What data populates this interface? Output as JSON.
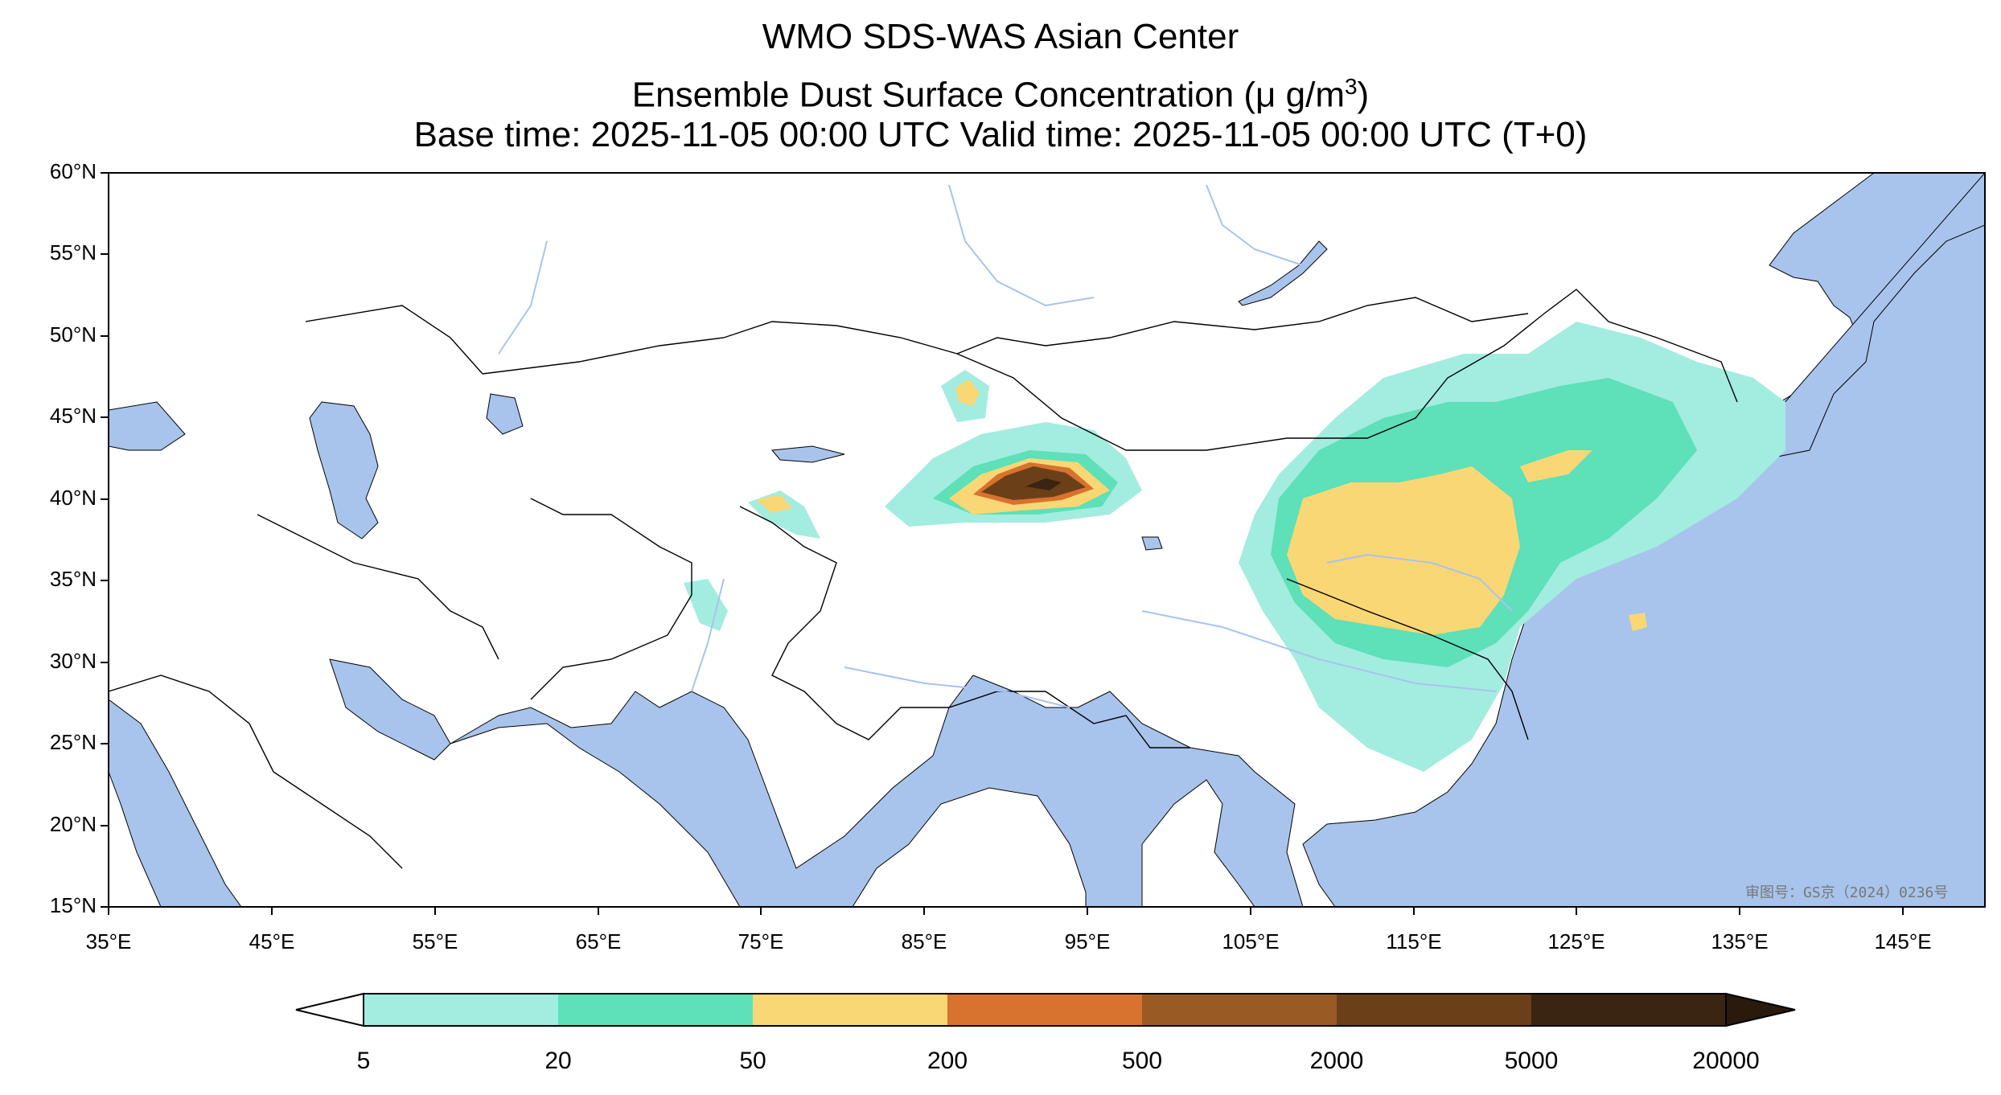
{
  "title": {
    "line1": "WMO SDS-WAS Asian Center",
    "line2_prefix": "Ensemble Dust Surface Concentration (μ g/m",
    "line2_sup": "3",
    "line2_suffix": ")",
    "line3": "Base time: 2025-11-05 00:00 UTC Valid time: 2025-11-05 00:00 UTC (T+0)"
  },
  "axes": {
    "lon_ticks": [
      "35°E",
      "45°E",
      "55°E",
      "65°E",
      "75°E",
      "85°E",
      "95°E",
      "105°E",
      "115°E",
      "125°E",
      "135°E",
      "145°E"
    ],
    "lat_ticks": [
      "60°N",
      "55°N",
      "50°N",
      "45°N",
      "40°N",
      "35°N",
      "30°N",
      "25°N",
      "20°N",
      "15°N"
    ],
    "lon_range": [
      35,
      150
    ],
    "lat_range": [
      15,
      60
    ]
  },
  "colorbar": {
    "ticks": [
      "5",
      "20",
      "50",
      "200",
      "500",
      "2000",
      "5000",
      "20000"
    ],
    "colors": [
      "#a3ece0",
      "#5ee0b8",
      "#fad775",
      "#d8722f",
      "#9a5a24",
      "#6b4019",
      "#3a2512"
    ],
    "extend_low_color": "#ffffff",
    "extend_high_color": "#2a1a0c"
  },
  "colors": {
    "ocean": "#a8c4ec",
    "land": "#ffffff",
    "river": "#a8c4ec"
  },
  "stamp": "审图号：GS京（2024）0236号"
}
